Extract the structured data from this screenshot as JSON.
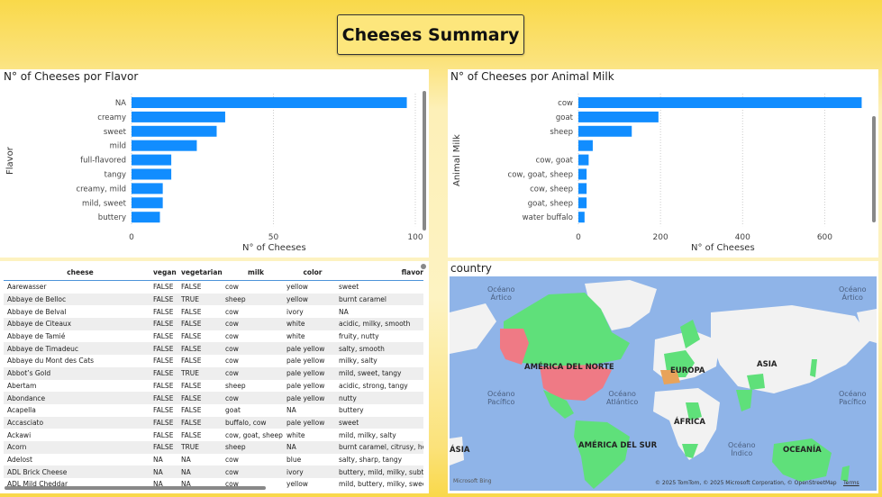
{
  "title": "Cheeses Summary",
  "flavor_chart": {
    "title": "N° of Cheeses por Flavor",
    "chart_data": {
      "type": "bar",
      "title": "N° of Cheeses por Flavor",
      "xlabel": "N° of Cheeses",
      "ylabel": "Flavor",
      "categories": [
        "NA",
        "creamy",
        "sweet",
        "mild",
        "full-flavored",
        "tangy",
        "creamy, mild",
        "mild, sweet",
        "buttery"
      ],
      "values": [
        97,
        33,
        30,
        23,
        14,
        14,
        11,
        11,
        10
      ],
      "xlim": [
        0,
        100
      ],
      "xticks": [
        "0",
        "50",
        "100"
      ],
      "grid": "vertical dotted",
      "color": "#118dff"
    }
  },
  "milk_chart": {
    "title": "N° of Cheeses por Animal Milk",
    "chart_data": {
      "type": "bar",
      "title": "N° of Cheeses por Animal Milk",
      "xlabel": "N° of Cheeses",
      "ylabel": "Animal Milk",
      "categories": [
        "cow",
        "goat",
        "sheep",
        "",
        "cow, goat",
        "cow, goat, sheep",
        "cow, sheep",
        "goat, sheep",
        "water buffalo"
      ],
      "values": [
        690,
        195,
        130,
        35,
        25,
        20,
        20,
        20,
        15
      ],
      "xlim": [
        0,
        700
      ],
      "xticks": [
        "0",
        "200",
        "400",
        "600"
      ],
      "grid": "vertical dotted",
      "color": "#118dff"
    }
  },
  "table": {
    "columns": [
      "cheese",
      "vegan",
      "vegetarian",
      "milk",
      "color",
      "flavor"
    ],
    "rows": [
      [
        "Aarewasser",
        "FALSE",
        "FALSE",
        "cow",
        "yellow",
        "sweet"
      ],
      [
        "Abbaye de Belloc",
        "FALSE",
        "TRUE",
        "sheep",
        "yellow",
        "burnt caramel"
      ],
      [
        "Abbaye de Belval",
        "FALSE",
        "FALSE",
        "cow",
        "ivory",
        "NA"
      ],
      [
        "Abbaye de Citeaux",
        "FALSE",
        "FALSE",
        "cow",
        "white",
        "acidic, milky, smooth"
      ],
      [
        "Abbaye de Tamié",
        "FALSE",
        "FALSE",
        "cow",
        "white",
        "fruity, nutty"
      ],
      [
        "Abbaye de Timadeuc",
        "FALSE",
        "FALSE",
        "cow",
        "pale yellow",
        "salty, smooth"
      ],
      [
        "Abbaye du Mont des Cats",
        "FALSE",
        "FALSE",
        "cow",
        "pale yellow",
        "milky, salty"
      ],
      [
        "Abbot’s Gold",
        "FALSE",
        "TRUE",
        "cow",
        "pale yellow",
        "mild, sweet, tangy"
      ],
      [
        "Abertam",
        "FALSE",
        "FALSE",
        "sheep",
        "pale yellow",
        "acidic, strong, tangy"
      ],
      [
        "Abondance",
        "FALSE",
        "FALSE",
        "cow",
        "pale yellow",
        "nutty"
      ],
      [
        "Acapella",
        "FALSE",
        "FALSE",
        "goat",
        "NA",
        "buttery"
      ],
      [
        "Accasciato",
        "FALSE",
        "FALSE",
        "buffalo, cow",
        "pale yellow",
        "sweet"
      ],
      [
        "Ackawi",
        "FALSE",
        "FALSE",
        "cow, goat, sheep",
        "white",
        "mild, milky, salty"
      ],
      [
        "Acorn",
        "FALSE",
        "TRUE",
        "sheep",
        "NA",
        "burnt caramel, citrusy, her"
      ],
      [
        "Adelost",
        "NA",
        "NA",
        "cow",
        "blue",
        "salty, sharp, tangy"
      ],
      [
        "ADL Brick Cheese",
        "NA",
        "NA",
        "cow",
        "ivory",
        "buttery, mild, milky, subtle"
      ],
      [
        "ADL Mild Cheddar",
        "NA",
        "NA",
        "cow",
        "yellow",
        "mild, buttery, milky, sweet"
      ]
    ]
  },
  "map": {
    "title": "country",
    "labels": {
      "arctic_left": "Océano\nÁrtico",
      "arctic_right": "Océano\nÁrtico",
      "pacific_left": "Océano\nPacífico",
      "pacific_right": "Océano\nPacífico",
      "atlantic": "Océano\nAtlántico",
      "indian": "Océano\nÍndico",
      "north_america": "AMÉRICA DEL NORTE",
      "south_america": "AMÉRICA DEL SUR",
      "europe": "EUROPA",
      "asia": "ASIA",
      "africa": "ÁFRICA",
      "oceania": "OCEANÍA",
      "asia_cut": "ÁSIA"
    },
    "brand": "Microsoft Bing",
    "copyright": "© 2025 TomTom, © 2025 Microsoft Corporation, © OpenStreetMap",
    "terms": "Terms",
    "colors": {
      "water": "#8fb4e8",
      "land": "#f2f2f2",
      "match": "#5fe07a",
      "highlight": "#ef7a85",
      "europe": "#e8a35a"
    }
  }
}
